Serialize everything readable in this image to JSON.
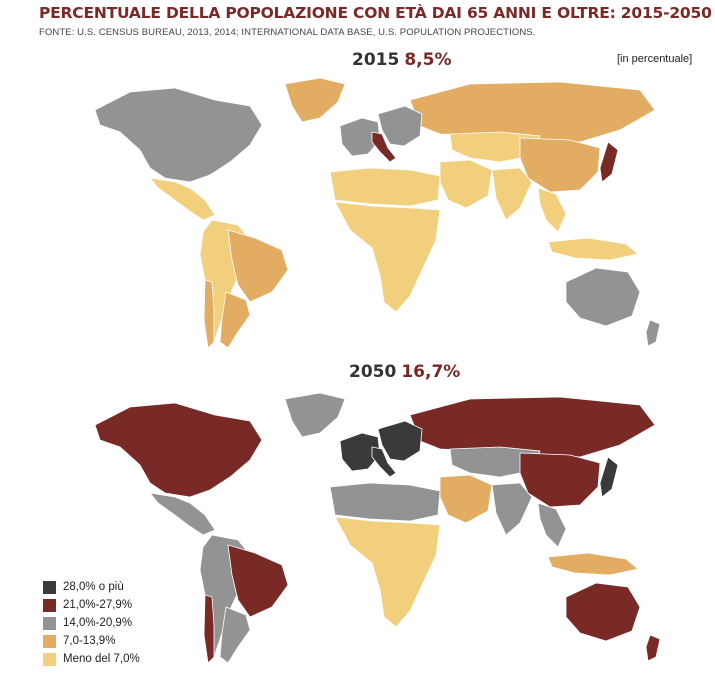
{
  "title": "PERCENTUALE DELLA POPOLAZIONE CON ETÀ DAI 65 ANNI E OLTRE: 2015-2050",
  "source": "FONTE: U.S. CENSUS BUREAU, 2013, 2014; INTERNATIONAL DATA BASE, U.S. POPULATION PROJECTIONS.",
  "unit_note": "[in percentuale]",
  "colors": {
    "c28": "#3a3a3a",
    "c21": "#7a2a26",
    "c14": "#939393",
    "c7": "#e2ad62",
    "c0": "#f2cf7c"
  },
  "panels": [
    {
      "year": "2015",
      "value": "8,5%",
      "regions": {
        "north_america": "c14",
        "greenland": "c7",
        "central_america": "c0",
        "south_america": "c0",
        "brazil": "c7",
        "argentina": "c7",
        "chile": "c7",
        "western_europe": "c14",
        "italy": "c21",
        "eastern_europe": "c14",
        "russia": "c7",
        "north_africa": "c0",
        "sub_saharan_africa": "c0",
        "middle_east": "c0",
        "central_asia": "c0",
        "india": "c0",
        "china": "c7",
        "japan": "c21",
        "southeast_asia": "c0",
        "indonesia": "c0",
        "australia": "c14",
        "new_zealand": "c14"
      }
    },
    {
      "year": "2050",
      "value": "16,7%",
      "regions": {
        "north_america": "c21",
        "greenland": "c14",
        "central_america": "c14",
        "south_america": "c14",
        "brazil": "c21",
        "argentina": "c14",
        "chile": "c21",
        "western_europe": "c28",
        "italy": "c28",
        "eastern_europe": "c28",
        "russia": "c21",
        "north_africa": "c14",
        "sub_saharan_africa": "c0",
        "middle_east": "c7",
        "central_asia": "c14",
        "india": "c14",
        "china": "c21",
        "japan": "c28",
        "southeast_asia": "c14",
        "indonesia": "c7",
        "australia": "c21",
        "new_zealand": "c21"
      }
    }
  ],
  "legend": [
    {
      "label": "28,0% o più",
      "color": "c28"
    },
    {
      "label": "21,0%-27,9%",
      "color": "c21"
    },
    {
      "label": "14,0%-20,9%",
      "color": "c14"
    },
    {
      "label": "7,0-13,9%",
      "color": "c7"
    },
    {
      "label": "Meno del 7,0%",
      "color": "c0"
    }
  ]
}
